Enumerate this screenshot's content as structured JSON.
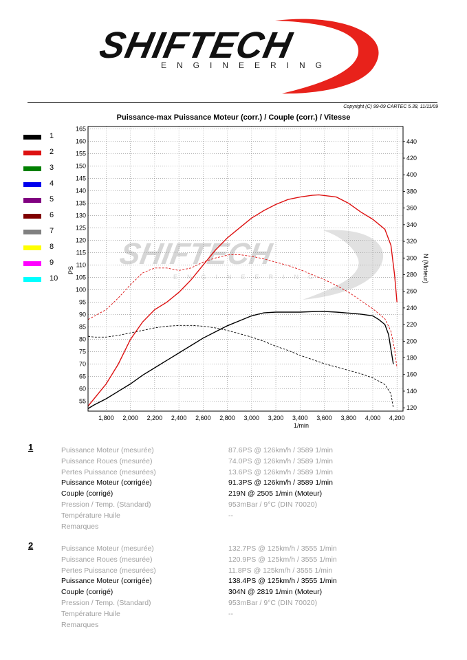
{
  "logo": {
    "word": "SHIFTECH",
    "sub": "ENGINEERING",
    "colors": {
      "text": "#111111",
      "swoosh": "#e8221b"
    }
  },
  "copyright": "Copyright (C) 99-09 CARTEC 5.38, 11/11/09",
  "legend": [
    {
      "label": "1",
      "color": "#000000"
    },
    {
      "label": "2",
      "color": "#dd1111"
    },
    {
      "label": "3",
      "color": "#008000"
    },
    {
      "label": "4",
      "color": "#0000ee"
    },
    {
      "label": "5",
      "color": "#800080"
    },
    {
      "label": "6",
      "color": "#800000"
    },
    {
      "label": "7",
      "color": "#808080"
    },
    {
      "label": "8",
      "color": "#ffff00"
    },
    {
      "label": "9",
      "color": "#ff00ff"
    },
    {
      "label": "10",
      "color": "#00ffff"
    }
  ],
  "chart_data": {
    "type": "line",
    "title": "Puissance-max Puissance Moteur (corr.) / Couple (corr.) / Vitesse",
    "xlabel": "1/min",
    "ylabel": "PS",
    "y2label": "N (Moteur)",
    "xlim": [
      1650,
      4250
    ],
    "ylim": [
      51,
      166
    ],
    "y2lim": [
      116,
      458
    ],
    "x_ticks": [
      1800,
      2000,
      2200,
      2400,
      2600,
      2800,
      3000,
      3200,
      3400,
      3600,
      3800,
      4000,
      4200
    ],
    "x_tick_labels": [
      "1,800",
      "2,000",
      "2,200",
      "2,400",
      "2,600",
      "2,800",
      "3,000",
      "3,200",
      "3,400",
      "3,600",
      "3,800",
      "4,000",
      "4,200"
    ],
    "y_ticks": [
      55,
      60,
      65,
      70,
      75,
      80,
      85,
      90,
      95,
      100,
      105,
      110,
      115,
      120,
      125,
      130,
      135,
      140,
      145,
      150,
      155,
      160,
      165
    ],
    "y2_ticks": [
      120,
      140,
      160,
      180,
      200,
      220,
      240,
      260,
      280,
      300,
      320,
      340,
      360,
      380,
      400,
      420,
      440
    ],
    "grid": true,
    "series": [
      {
        "name": "1",
        "kind": "power",
        "axis": "left",
        "color": "#000000",
        "dash": false,
        "x": [
          1650,
          1700,
          1800,
          1900,
          2000,
          2100,
          2200,
          2300,
          2400,
          2500,
          2600,
          2700,
          2800,
          2900,
          3000,
          3100,
          3200,
          3300,
          3400,
          3500,
          3589,
          3700,
          3800,
          3900,
          4000,
          4050,
          4100,
          4130,
          4150,
          4170
        ],
        "y": [
          52,
          53.5,
          56,
          59,
          62,
          65.5,
          68.5,
          71.5,
          74.5,
          77.5,
          80.5,
          83,
          85.5,
          87.5,
          89.5,
          90.7,
          91,
          91,
          91,
          91.2,
          91.3,
          91,
          90.6,
          90.2,
          89.5,
          88,
          86,
          82,
          76,
          70
        ]
      },
      {
        "name": "1",
        "kind": "torque",
        "axis": "right",
        "color": "#000000",
        "dash": true,
        "x": [
          1650,
          1700,
          1800,
          1900,
          2000,
          2100,
          2200,
          2300,
          2400,
          2505,
          2600,
          2700,
          2800,
          2900,
          3000,
          3100,
          3200,
          3300,
          3400,
          3500,
          3600,
          3700,
          3800,
          3900,
          4000,
          4050,
          4100,
          4150,
          4170
        ],
        "y": [
          206,
          205,
          205,
          207,
          210,
          213,
          216,
          218,
          219,
          219,
          218,
          216,
          213,
          209,
          205,
          200,
          194,
          189,
          183,
          178,
          173,
          169,
          165,
          161,
          156,
          152,
          148,
          137,
          120
        ]
      },
      {
        "name": "2",
        "kind": "power",
        "axis": "left",
        "color": "#dd1111",
        "dash": false,
        "x": [
          1650,
          1700,
          1800,
          1900,
          2000,
          2100,
          2200,
          2300,
          2400,
          2500,
          2600,
          2700,
          2800,
          2900,
          3000,
          3100,
          3200,
          3300,
          3400,
          3500,
          3555,
          3700,
          3800,
          3900,
          4000,
          4100,
          4150,
          4180,
          4200
        ],
        "y": [
          53,
          56,
          62,
          70,
          80,
          87,
          92,
          95,
          99,
          104,
          110,
          116,
          121,
          125,
          129,
          132,
          134.5,
          136.5,
          137.5,
          138.2,
          138.4,
          137.5,
          135,
          131.5,
          128.5,
          124.5,
          118,
          106,
          95
        ]
      },
      {
        "name": "2",
        "kind": "torque",
        "axis": "right",
        "color": "#dd1111",
        "dash": true,
        "x": [
          1650,
          1700,
          1800,
          1900,
          2000,
          2100,
          2200,
          2300,
          2400,
          2500,
          2600,
          2700,
          2819,
          2900,
          3000,
          3100,
          3200,
          3300,
          3400,
          3500,
          3600,
          3700,
          3800,
          3900,
          4000,
          4100,
          4150,
          4180,
          4200
        ],
        "y": [
          226,
          230,
          238,
          252,
          268,
          282,
          288,
          288,
          285,
          288,
          295,
          300,
          304,
          304,
          302,
          299,
          295,
          291,
          286,
          280,
          274,
          267,
          259,
          249,
          239,
          227,
          212,
          190,
          168
        ]
      }
    ]
  },
  "results": [
    {
      "number": "1",
      "rows": [
        {
          "label": "Puissance Moteur (mesurée)",
          "value": "87.6PS @ 126km/h / 3589 1/min",
          "emph": false
        },
        {
          "label": "Puissance Roues (mesurée)",
          "value": "74.0PS @ 126km/h / 3589 1/min",
          "emph": false
        },
        {
          "label": "Pertes Puissance (mesurées)",
          "value": "13.6PS @ 126km/h / 3589 1/min",
          "emph": false
        },
        {
          "label": "Puissance Moteur (corrigée)",
          "value": "91.3PS @ 126km/h / 3589 1/min",
          "emph": true
        },
        {
          "label": "Couple (corrigé)",
          "value": "219N @ 2505 1/min (Moteur)",
          "emph": true
        },
        {
          "label": "Pression / Temp. (Standard)",
          "value": "953mBar / 9°C   (DIN 70020)",
          "emph": false
        },
        {
          "label": "Température Huile",
          "value": "--",
          "emph": false
        },
        {
          "label": "Remarques",
          "value": "",
          "emph": false
        }
      ]
    },
    {
      "number": "2",
      "rows": [
        {
          "label": "Puissance Moteur (mesurée)",
          "value": "132.7PS @ 125km/h / 3555 1/min",
          "emph": false
        },
        {
          "label": "Puissance Roues (mesurée)",
          "value": "120.9PS @ 125km/h / 3555 1/min",
          "emph": false
        },
        {
          "label": "Pertes Puissance (mesurées)",
          "value": "11.8PS @ 125km/h / 3555 1/min",
          "emph": false
        },
        {
          "label": "Puissance Moteur (corrigée)",
          "value": "138.4PS @ 125km/h / 3555 1/min",
          "emph": true
        },
        {
          "label": "Couple (corrigé)",
          "value": "304N @ 2819 1/min (Moteur)",
          "emph": true
        },
        {
          "label": "Pression / Temp. (Standard)",
          "value": "953mBar / 9°C   (DIN 70020)",
          "emph": false
        },
        {
          "label": "Température Huile",
          "value": "--",
          "emph": false
        },
        {
          "label": "Remarques",
          "value": "",
          "emph": false
        }
      ]
    }
  ]
}
